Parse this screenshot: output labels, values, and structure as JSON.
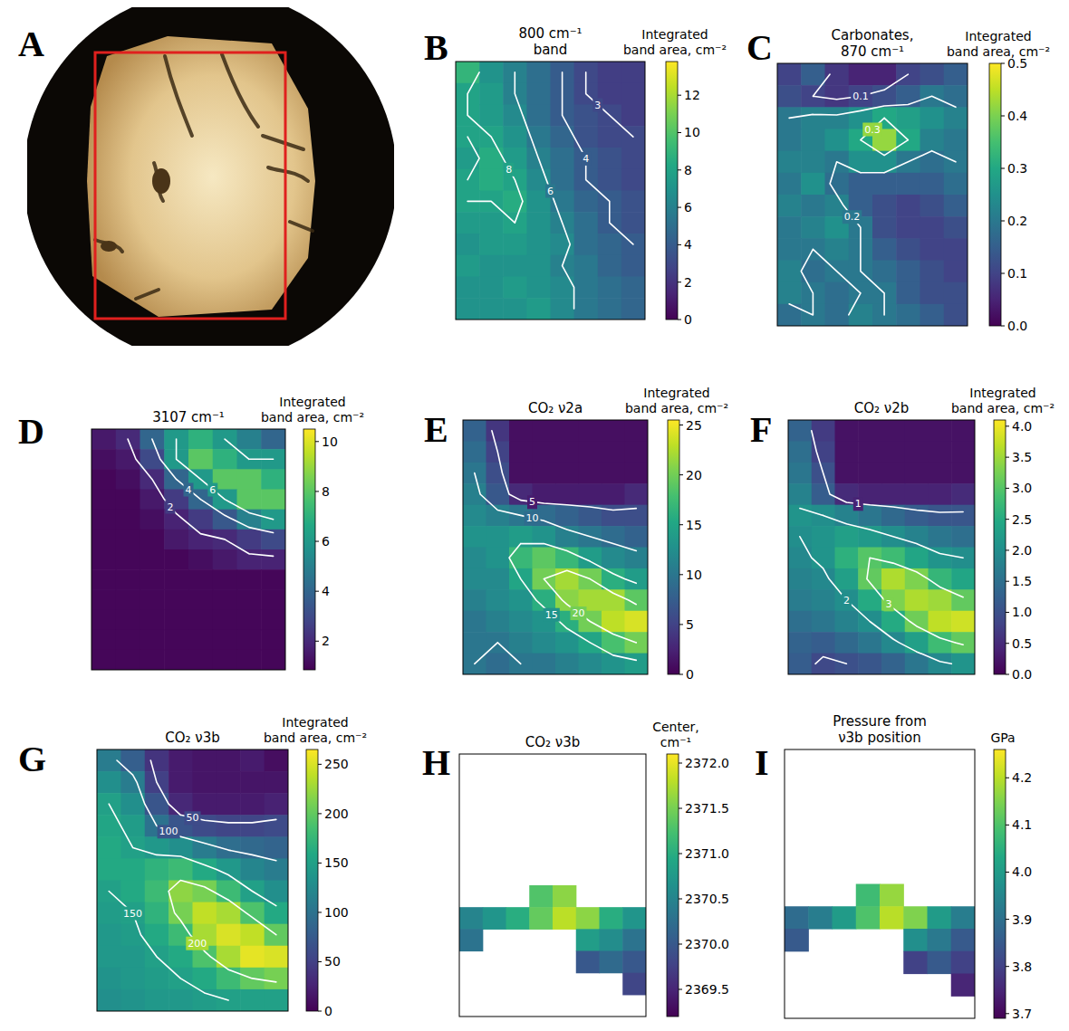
{
  "chart_data": [
    {
      "type": "image",
      "panel_label": "A"
    },
    {
      "type": "heatmap",
      "panel_label": "B",
      "title": [
        "800 cm⁻¹",
        "band"
      ],
      "colorbar_label": [
        "Integrated",
        "band area, cm⁻²"
      ],
      "color": "viridis",
      "clim": [
        0,
        13.8
      ],
      "cticks": [
        0,
        2,
        4,
        6,
        8,
        10,
        12
      ],
      "contour_levels": [
        3,
        4,
        6,
        8
      ],
      "cells": [
        [
          9,
          7,
          6,
          5,
          4,
          3,
          2.5,
          2.5
        ],
        [
          8,
          7.5,
          6,
          5,
          4,
          3,
          2.5,
          2.5
        ],
        [
          8,
          7.5,
          6.5,
          5,
          4,
          3.5,
          3,
          2.5
        ],
        [
          8,
          8,
          7,
          5.5,
          4.5,
          3.5,
          3,
          3
        ],
        [
          7.5,
          8.5,
          7.5,
          6,
          5,
          4,
          3.5,
          3
        ],
        [
          8,
          8.5,
          8,
          6.5,
          5,
          4,
          3.5,
          3
        ],
        [
          8,
          8,
          8.5,
          7,
          5.5,
          4.5,
          4,
          3.5
        ],
        [
          7.5,
          7.5,
          8,
          7,
          6,
          5,
          4,
          3.5
        ],
        [
          7,
          7.5,
          7.5,
          7,
          6.5,
          5,
          4.5,
          4
        ],
        [
          7.5,
          7,
          7,
          7,
          6,
          5.5,
          4.5,
          4
        ],
        [
          7,
          7,
          7.5,
          7,
          6.5,
          5.5,
          5,
          4.5
        ],
        [
          7,
          7,
          7,
          7.5,
          6.5,
          5.5,
          5,
          4.5
        ]
      ]
    },
    {
      "type": "heatmap",
      "panel_label": "C",
      "title": [
        "Carbonates,",
        "870 cm⁻¹"
      ],
      "colorbar_label": [
        "Integrated",
        "band area, cm⁻²"
      ],
      "color": "viridis",
      "clim": [
        0,
        0.5
      ],
      "cticks": [
        {
          "value": 0,
          "label": "0.0"
        },
        0.1,
        0.2,
        0.3,
        0.4,
        0.5
      ],
      "contour_levels": [
        0.1,
        0.2,
        0.3
      ],
      "cells": [
        [
          0.1,
          0.15,
          0.08,
          0.05,
          0.05,
          0.1,
          0.12,
          0.15
        ],
        [
          0.12,
          0.1,
          0.08,
          0.1,
          0.12,
          0.15,
          0.2,
          0.18
        ],
        [
          0.2,
          0.22,
          0.22,
          0.25,
          0.3,
          0.28,
          0.25,
          0.22
        ],
        [
          0.2,
          0.22,
          0.25,
          0.3,
          0.42,
          0.3,
          0.22,
          0.2
        ],
        [
          0.22,
          0.22,
          0.2,
          0.25,
          0.25,
          0.2,
          0.18,
          0.2
        ],
        [
          0.2,
          0.25,
          0.18,
          0.15,
          0.15,
          0.15,
          0.15,
          0.18
        ],
        [
          0.22,
          0.2,
          0.22,
          0.15,
          0.12,
          0.1,
          0.12,
          0.15
        ],
        [
          0.2,
          0.22,
          0.25,
          0.2,
          0.12,
          0.1,
          0.1,
          0.12
        ],
        [
          0.2,
          0.2,
          0.22,
          0.2,
          0.15,
          0.12,
          0.1,
          0.1
        ],
        [
          0.22,
          0.18,
          0.2,
          0.2,
          0.18,
          0.15,
          0.12,
          0.1
        ],
        [
          0.22,
          0.2,
          0.18,
          0.2,
          0.2,
          0.15,
          0.12,
          0.12
        ],
        [
          0.18,
          0.2,
          0.18,
          0.22,
          0.2,
          0.18,
          0.15,
          0.12
        ]
      ]
    },
    {
      "type": "heatmap",
      "panel_label": "D",
      "title": [
        "3107 cm⁻¹"
      ],
      "colorbar_label": [
        "Integrated",
        "band area, cm⁻²"
      ],
      "color": "viridis",
      "clim": [
        0.85,
        10.5
      ],
      "cticks": [
        2,
        4,
        6,
        8,
        10
      ],
      "contour_levels": [
        2,
        4,
        6
      ],
      "cells": [
        [
          1.5,
          2,
          4,
          6,
          7,
          6,
          5,
          4
        ],
        [
          1.2,
          1.5,
          3,
          6,
          8,
          7,
          6,
          6
        ],
        [
          1,
          1.2,
          2,
          4,
          6,
          8,
          8,
          7
        ],
        [
          1,
          1,
          1.5,
          2.5,
          4,
          6,
          8,
          8
        ],
        [
          1,
          1,
          1.2,
          1.8,
          2.5,
          3.5,
          5,
          6
        ],
        [
          1,
          1,
          1,
          1.5,
          1.8,
          2,
          2.5,
          3
        ],
        [
          1,
          1,
          1,
          1,
          1.2,
          1.5,
          1.8,
          1.8
        ],
        [
          1,
          1,
          1,
          1,
          1,
          1,
          1,
          1
        ],
        [
          1,
          1,
          1,
          1,
          1,
          1,
          1,
          1
        ],
        [
          1,
          1,
          1,
          1,
          1,
          1,
          1,
          1
        ],
        [
          1,
          1,
          1,
          1,
          1,
          1,
          1,
          1
        ],
        [
          1,
          1,
          1,
          1,
          1,
          1,
          1,
          1
        ]
      ]
    },
    {
      "type": "heatmap",
      "panel_label": "E",
      "title": [
        "CO₂ ν2a"
      ],
      "colorbar_label": [
        "Integrated",
        "band area, cm⁻²"
      ],
      "color": "viridis",
      "clim": [
        0,
        25.5
      ],
      "cticks": [
        0,
        5,
        10,
        15,
        20,
        25
      ],
      "contour_levels": [
        5,
        10,
        15,
        20
      ],
      "cells": [
        [
          8,
          4,
          1,
          1,
          1,
          1,
          1,
          1
        ],
        [
          9,
          5,
          1,
          1,
          1,
          1,
          1,
          1
        ],
        [
          10,
          6,
          1,
          1,
          1,
          1,
          1,
          1
        ],
        [
          11,
          7,
          3,
          2,
          2,
          2,
          2,
          3
        ],
        [
          12,
          11,
          10,
          9,
          8,
          7,
          6,
          6
        ],
        [
          13,
          13,
          14,
          13,
          11,
          10,
          9,
          8
        ],
        [
          12,
          13,
          17,
          19,
          17,
          14,
          12,
          11
        ],
        [
          12,
          12,
          15,
          20,
          22,
          20,
          16,
          14
        ],
        [
          11,
          12,
          13,
          16,
          21,
          22,
          22,
          19
        ],
        [
          10,
          11,
          12,
          13,
          16,
          20,
          23,
          24
        ],
        [
          10,
          10,
          11,
          12,
          13,
          15,
          18,
          20
        ],
        [
          10,
          9,
          10,
          10,
          11,
          12,
          13,
          14
        ]
      ]
    },
    {
      "type": "heatmap",
      "panel_label": "F",
      "title": [
        "CO₂ ν2b"
      ],
      "colorbar_label": [
        "Integrated",
        "band area, cm⁻²"
      ],
      "color": "viridis",
      "clim": [
        0,
        4.1
      ],
      "cticks": [
        {
          "value": 0,
          "label": "0.0"
        },
        0.5,
        {
          "value": 1,
          "label": "1.0"
        },
        1.5,
        {
          "value": 2,
          "label": "2.0"
        },
        2.5,
        {
          "value": 3,
          "label": "3.0"
        },
        3.5,
        {
          "value": 4,
          "label": "4.0"
        }
      ],
      "contour_levels": [
        1,
        2,
        3
      ],
      "cells": [
        [
          1.3,
          0.7,
          0.2,
          0.2,
          0.2,
          0.2,
          0.2,
          0.2
        ],
        [
          1.5,
          0.8,
          0.2,
          0.2,
          0.2,
          0.2,
          0.2,
          0.2
        ],
        [
          1.6,
          1.0,
          0.2,
          0.2,
          0.2,
          0.2,
          0.2,
          0.2
        ],
        [
          1.8,
          1.2,
          0.5,
          0.4,
          0.4,
          0.4,
          0.4,
          0.5
        ],
        [
          2.1,
          2.0,
          1.8,
          1.6,
          1.4,
          1.2,
          1.1,
          1.1
        ],
        [
          2.0,
          2.1,
          2.3,
          2.2,
          2.0,
          1.8,
          1.6,
          1.5
        ],
        [
          1.9,
          2.1,
          2.6,
          3.0,
          2.8,
          2.4,
          2.1,
          2.0
        ],
        [
          1.8,
          1.9,
          2.3,
          3.1,
          3.6,
          3.3,
          2.7,
          2.4
        ],
        [
          1.7,
          1.8,
          2.0,
          2.5,
          3.3,
          3.6,
          3.5,
          3.1
        ],
        [
          1.5,
          1.6,
          1.8,
          2.0,
          2.5,
          3.2,
          3.7,
          3.8
        ],
        [
          1.3,
          1.2,
          1.4,
          1.6,
          1.9,
          2.3,
          2.8,
          3.1
        ],
        [
          1.2,
          0.9,
          1.0,
          1.1,
          1.3,
          1.6,
          1.9,
          2.1
        ]
      ]
    },
    {
      "type": "heatmap",
      "panel_label": "G",
      "title": [
        "CO₂ ν3b"
      ],
      "colorbar_label": [
        "Integrated",
        "band area, cm⁻²"
      ],
      "color": "viridis",
      "clim": [
        0,
        265
      ],
      "cticks": [
        0,
        50,
        100,
        150,
        200,
        250
      ],
      "contour_levels": [
        50,
        100,
        150,
        200
      ],
      "cells": [
        [
          110,
          80,
          40,
          20,
          15,
          15,
          20,
          10
        ],
        [
          130,
          110,
          50,
          20,
          15,
          15,
          15,
          15
        ],
        [
          150,
          130,
          70,
          30,
          20,
          20,
          20,
          25
        ],
        [
          155,
          145,
          100,
          70,
          60,
          55,
          55,
          60
        ],
        [
          160,
          150,
          140,
          130,
          110,
          95,
          90,
          85
        ],
        [
          160,
          160,
          170,
          180,
          160,
          140,
          120,
          110
        ],
        [
          150,
          160,
          180,
          220,
          210,
          180,
          150,
          130
        ],
        [
          145,
          150,
          170,
          210,
          240,
          230,
          190,
          160
        ],
        [
          140,
          145,
          160,
          180,
          230,
          250,
          240,
          200
        ],
        [
          140,
          140,
          150,
          160,
          190,
          230,
          255,
          250
        ],
        [
          135,
          140,
          145,
          150,
          160,
          180,
          200,
          210
        ],
        [
          130,
          135,
          140,
          140,
          145,
          150,
          150,
          150
        ]
      ]
    },
    {
      "type": "heatmap",
      "panel_label": "H",
      "title": [
        "CO₂ ν3b"
      ],
      "colorbar_label": [
        "Center,",
        "cm⁻¹"
      ],
      "color": "viridis",
      "clim": [
        2369.2,
        2372.1
      ],
      "cticks": [
        2369.5,
        {
          "value": 2370,
          "label": "2370.0"
        },
        2370.5,
        {
          "value": 2371,
          "label": "2371.0"
        },
        2371.5,
        {
          "value": 2372,
          "label": "2372.0"
        }
      ],
      "cells": [
        [
          null,
          null,
          null,
          null,
          null,
          null,
          null,
          null
        ],
        [
          null,
          null,
          null,
          null,
          null,
          null,
          null,
          null
        ],
        [
          null,
          null,
          null,
          null,
          null,
          null,
          null,
          null
        ],
        [
          null,
          null,
          null,
          null,
          null,
          null,
          null,
          null
        ],
        [
          null,
          null,
          null,
          null,
          null,
          null,
          null,
          null
        ],
        [
          null,
          null,
          null,
          null,
          null,
          null,
          null,
          null
        ],
        [
          null,
          null,
          null,
          2371.3,
          2371.6,
          null,
          null,
          null
        ],
        [
          2370.5,
          2370.7,
          2371.0,
          2371.4,
          2371.8,
          2371.6,
          2371.0,
          2370.7
        ],
        [
          2370.3,
          null,
          null,
          null,
          null,
          2370.8,
          2370.6,
          2370.3
        ],
        [
          null,
          null,
          null,
          null,
          null,
          2370.0,
          2370.2,
          2370.0
        ],
        [
          null,
          null,
          null,
          null,
          null,
          null,
          null,
          2369.8
        ],
        [
          null,
          null,
          null,
          null,
          null,
          null,
          null,
          null
        ]
      ]
    },
    {
      "type": "heatmap",
      "panel_label": "I",
      "title": [
        "Pressure from",
        "ν3b position"
      ],
      "colorbar_label": [
        "GPa"
      ],
      "color": "viridis",
      "clim": [
        3.69,
        4.26
      ],
      "cticks": [
        3.7,
        3.8,
        3.9,
        {
          "value": 4,
          "label": "4.0"
        },
        4.1,
        4.2
      ],
      "cells": [
        [
          null,
          null,
          null,
          null,
          null,
          null,
          null,
          null
        ],
        [
          null,
          null,
          null,
          null,
          null,
          null,
          null,
          null
        ],
        [
          null,
          null,
          null,
          null,
          null,
          null,
          null,
          null
        ],
        [
          null,
          null,
          null,
          null,
          null,
          null,
          null,
          null
        ],
        [
          null,
          null,
          null,
          null,
          null,
          null,
          null,
          null
        ],
        [
          null,
          null,
          null,
          null,
          null,
          null,
          null,
          null
        ],
        [
          null,
          null,
          null,
          4.08,
          4.17,
          null,
          null,
          null
        ],
        [
          3.89,
          3.93,
          4.0,
          4.1,
          4.2,
          4.15,
          4.0,
          3.93
        ],
        [
          3.85,
          null,
          null,
          null,
          null,
          3.97,
          3.92,
          3.85
        ],
        [
          null,
          null,
          null,
          null,
          null,
          3.8,
          3.85,
          3.8
        ],
        [
          null,
          null,
          null,
          null,
          null,
          null,
          null,
          3.75
        ],
        [
          null,
          null,
          null,
          null,
          null,
          null,
          null,
          null
        ]
      ]
    }
  ]
}
